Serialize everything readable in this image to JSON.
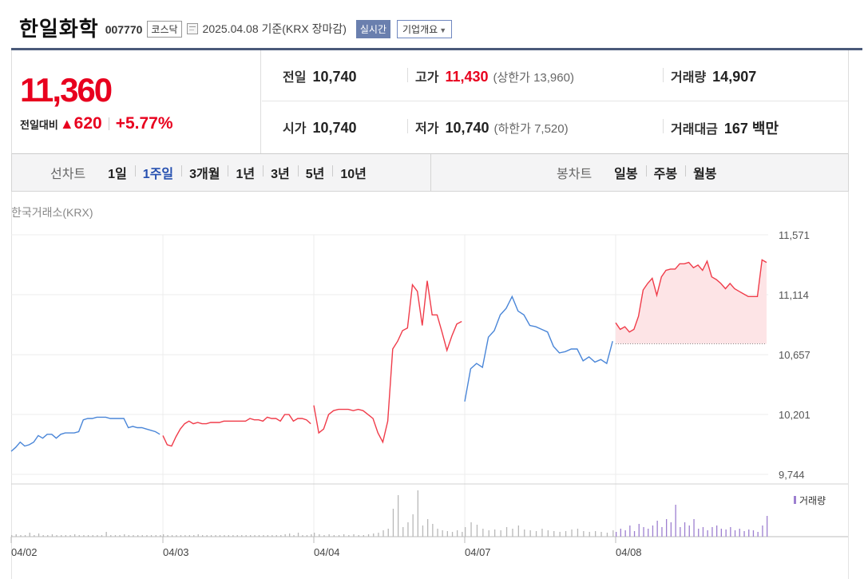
{
  "header": {
    "name": "한일화학",
    "code": "007770",
    "market": "코스닥",
    "date_text": "2025.04.08  기준(KRX 장마감)",
    "realtime_label": "실시간",
    "overview_label": "기업개요"
  },
  "price": {
    "current": "11,360",
    "diff_label": "전일대비",
    "diff_arrow": "▲",
    "diff_value": "620",
    "diff_pct": "+5.77%"
  },
  "info": {
    "prev_label": "전일",
    "prev_value": "10,740",
    "high_label": "고가",
    "high_value": "11,430",
    "upper_limit": "(상한가 13,960)",
    "volume_label": "거래량",
    "volume_value": "14,907",
    "open_label": "시가",
    "open_value": "10,740",
    "low_label": "저가",
    "low_value": "10,740",
    "lower_limit": "(하한가 7,520)",
    "amount_label": "거래대금",
    "amount_value": "167 백만"
  },
  "range": {
    "line_title": "선차트",
    "line_items": [
      "1일",
      "1주일",
      "3개월",
      "1년",
      "3년",
      "5년",
      "10년"
    ],
    "line_active": "1주일",
    "candle_title": "봉차트",
    "candle_items": [
      "일봉",
      "주봉",
      "월봉"
    ]
  },
  "chart_data": {
    "type": "line",
    "source_label": "한국거래소(KRX)",
    "y_ticks": [
      9744,
      10201,
      10657,
      11114,
      11571
    ],
    "y_tick_labels": [
      "9,744",
      "10,201",
      "10,657",
      "11,114",
      "11,571"
    ],
    "ylim": [
      9744,
      11571
    ],
    "x_ticks": [
      "04/02",
      "04/03",
      "04/04",
      "04/07",
      "04/08"
    ],
    "volume_legend": "거래량",
    "baseline": 10740,
    "colors": {
      "up": "#f03c4a",
      "down": "#4a86d8",
      "fill": "#fde4e6",
      "volume": "#b8b8b8",
      "volume_last": "#9d7fd0"
    },
    "series": [
      {
        "day": "04/02",
        "values": [
          9920,
          9950,
          9990,
          9960,
          9970,
          9990,
          10040,
          10020,
          10050,
          10050,
          10020,
          10050,
          10060,
          10060,
          10060,
          10070,
          10160,
          10170,
          10170,
          10180,
          10180,
          10180,
          10170,
          10170,
          10170,
          10170,
          10100,
          10110,
          10100,
          10100,
          10090,
          10080,
          10070,
          10050
        ]
      },
      {
        "day": "04/03",
        "values": [
          10040,
          9970,
          9960,
          10030,
          10090,
          10130,
          10150,
          10130,
          10140,
          10130,
          10130,
          10140,
          10140,
          10140,
          10150,
          10150,
          10150,
          10150,
          10150,
          10150,
          10170,
          10160,
          10160,
          10150,
          10180,
          10170,
          10170,
          10150,
          10200,
          10200,
          10150,
          10170,
          10170,
          10160,
          10130
        ]
      },
      {
        "day": "04/04",
        "values": [
          10270,
          10060,
          10090,
          10200,
          10230,
          10240,
          10240,
          10240,
          10230,
          10240,
          10230,
          10200,
          10170,
          10060,
          9990,
          10150,
          10700,
          10760,
          10840,
          10860,
          11190,
          11140,
          10880,
          11220,
          10960,
          10960,
          10830,
          10690,
          10800,
          10890,
          10910
        ]
      },
      {
        "day": "04/07",
        "values": [
          10300,
          10550,
          10590,
          10560,
          10790,
          10840,
          10960,
          11010,
          11100,
          10990,
          10960,
          10880,
          10870,
          10850,
          10830,
          10720,
          10670,
          10680,
          10700,
          10700,
          10610,
          10640,
          10600,
          10620,
          10590,
          10760
        ]
      },
      {
        "day": "04/08",
        "values": [
          10900,
          10850,
          10870,
          10830,
          10850,
          10950,
          11150,
          11200,
          11240,
          11110,
          11250,
          11300,
          11310,
          11310,
          11350,
          11350,
          11360,
          11320,
          11340,
          11300,
          11370,
          11250,
          11230,
          11200,
          11160,
          11200,
          11160,
          11140,
          11120,
          11100,
          11100,
          11100,
          11380,
          11360
        ]
      }
    ],
    "volume": [
      [
        2,
        3,
        2,
        2,
        5,
        2,
        4,
        2,
        2,
        3,
        2,
        2,
        2,
        2,
        3,
        2,
        2,
        2,
        2,
        2,
        2,
        6,
        2,
        2,
        2,
        3,
        2,
        2,
        2,
        2,
        2,
        2,
        2,
        2
      ],
      [
        3,
        2,
        2,
        2,
        2,
        2,
        2,
        2,
        3,
        2,
        2,
        2,
        2,
        2,
        2,
        2,
        2,
        2,
        2,
        2,
        2,
        2,
        2,
        2,
        2,
        2,
        2,
        2,
        3,
        4,
        2,
        5,
        2,
        2,
        3
      ],
      [
        5,
        3,
        2,
        3,
        2,
        2,
        3,
        2,
        3,
        2,
        2,
        3,
        4,
        5,
        8,
        10,
        35,
        52,
        12,
        18,
        28,
        58,
        14,
        22,
        16,
        10,
        8,
        7,
        6,
        8,
        6
      ],
      [
        12,
        18,
        15,
        10,
        8,
        9,
        8,
        12,
        10,
        14,
        9,
        8,
        7,
        10,
        8,
        7,
        6,
        7,
        9,
        10,
        7,
        6,
        7,
        6,
        5,
        8
      ],
      [
        6,
        10,
        8,
        14,
        7,
        16,
        12,
        10,
        14,
        20,
        12,
        22,
        18,
        40,
        12,
        18,
        14,
        22,
        10,
        12,
        8,
        12,
        14,
        10,
        9,
        12,
        8,
        10,
        7,
        9,
        8,
        6,
        14,
        26
      ]
    ]
  }
}
